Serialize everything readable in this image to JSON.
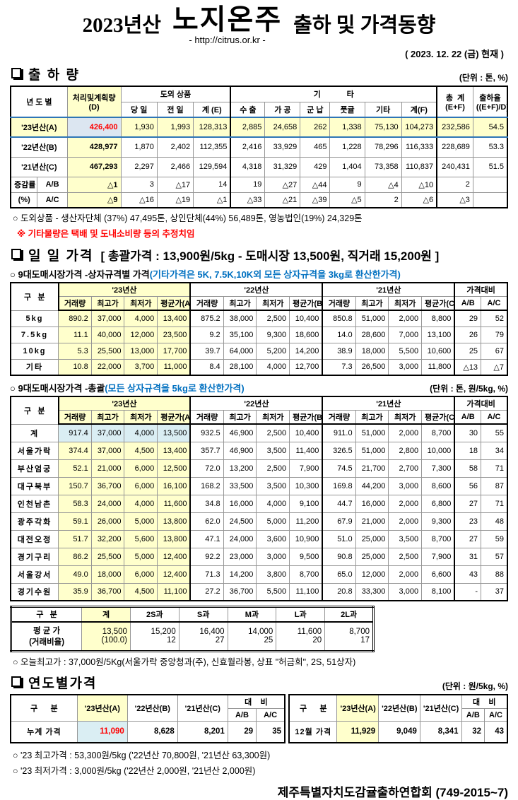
{
  "colors": {
    "accent_yellow": "#FFFFCC",
    "accent_blue": "#DAEEF3",
    "accent_blue2": "#DCE6F1",
    "red_text": "#FF0000",
    "blue_text": "#0070C0",
    "line_blue": "#2E75B6"
  },
  "title": {
    "year": "2023년산",
    "product": "노지온주",
    "rest": "출하 및 가격동향",
    "url": "- http://citrus.or.kr -",
    "date": "( 2023.  12.  22 (금) 현재 )"
  },
  "shipment": {
    "heading": "출 하 량",
    "unit": "(단위 : 톤, %)",
    "header": {
      "col_year": "년 도 별",
      "colD_top": "처리및계획량",
      "colD_bot": "(D)",
      "group_dooe": "도외 상품",
      "group_gita": "기            타",
      "sub": [
        "당 일",
        "전 일",
        "계 (E)",
        "수 출",
        "가 공",
        "군 납",
        "풋귤",
        "기타",
        "계(F)"
      ],
      "total_top": "총  계",
      "total_bot": "(E+F)",
      "rate_top": "출하율",
      "rate_bot": "((E+F)/D)"
    },
    "rows": [
      {
        "label": "'23년산(A)",
        "span": 2,
        "cls": "cur",
        "cells": [
          "426,400",
          "1,930",
          "1,993",
          "128,313",
          "2,885",
          "24,658",
          "262",
          "1,338",
          "75,130",
          "104,273",
          "232,586",
          "54.5"
        ]
      },
      {
        "label": "'22년산(B)",
        "span": 2,
        "cells": [
          "428,977",
          "1,870",
          "2,402",
          "112,355",
          "2,416",
          "33,929",
          "465",
          "1,228",
          "78,296",
          "116,333",
          "228,689",
          "53.3"
        ]
      },
      {
        "label": "'21년산(C)",
        "span": 2,
        "cells": [
          "467,293",
          "2,297",
          "2,466",
          "129,594",
          "4,318",
          "31,329",
          "429",
          "1,404",
          "73,358",
          "110,837",
          "240,431",
          "51.5"
        ]
      },
      {
        "label": "증감률",
        "label2": "A/B",
        "cls": "small",
        "cells": [
          "△1",
          "3",
          "△17",
          "14",
          "19",
          "△27",
          "△44",
          "9",
          "△4",
          "△10",
          "2",
          ""
        ]
      },
      {
        "label": "(%)",
        "label2": "A/C",
        "cls": "small",
        "cells": [
          "△9",
          "△16",
          "△19",
          "△1",
          "△33",
          "△21",
          "△39",
          "△5",
          "2",
          "△6",
          "△3",
          ""
        ]
      }
    ],
    "note1": "○ 도외상품 - 생산자단체 (37%) 47,495톤, 상인단체(44%) 56,489톤, 영농법인(19%) 24,329톤",
    "note2": "※ 기타물량은 택배 및 도내소비량 등의 추정치임"
  },
  "daily": {
    "heading": "일 일 가격",
    "bracket": "[ 총괄가격 : 13,900원/5kg - 도매시장 13,500원,  직거래 15,200원 ]",
    "price_header": {
      "gubun": "구   분",
      "y23": "'23년산",
      "y22": "'22년산",
      "y21": "'21년산",
      "cmp": "가격대비",
      "sub": [
        "거래량",
        "최고가",
        "최저가",
        "평균가(A)",
        "거래량",
        "최고가",
        "최저가",
        "평균가(B)",
        "거래량",
        "최고가",
        "최저가",
        "평균가(C)",
        "A/B",
        "A/C"
      ]
    },
    "box": {
      "title_black": "○ 9대도매시장가격 -상자규격별 가격",
      "title_blue": "(기타가격은 5K, 7.5K,10K외 모든 상자규격을 3kg로 환산한가격)",
      "rows": [
        {
          "label": "5kg",
          "cls": "hl-y",
          "cells": [
            "890.2",
            "37,000",
            "4,000",
            "13,400",
            "875.2",
            "38,000",
            "2,500",
            "10,400",
            "850.8",
            "51,000",
            "2,000",
            "8,800",
            "29",
            "52"
          ]
        },
        {
          "label": "7.5kg",
          "cls": "hl-y",
          "cells": [
            "11.1",
            "40,000",
            "12,000",
            "23,500",
            "9.2",
            "35,100",
            "9,300",
            "18,600",
            "14.0",
            "28,600",
            "7,000",
            "13,100",
            "26",
            "79"
          ]
        },
        {
          "label": "10kg",
          "cls": "hl-y",
          "cells": [
            "5.3",
            "25,500",
            "13,000",
            "17,700",
            "39.7",
            "64,000",
            "5,200",
            "14,200",
            "38.9",
            "18,000",
            "5,500",
            "10,600",
            "25",
            "67"
          ]
        },
        {
          "label": "기타",
          "cls": "hl-y",
          "cells": [
            "10.8",
            "22,000",
            "3,700",
            "11,000",
            "8.4",
            "28,100",
            "4,000",
            "12,700",
            "7.3",
            "26,500",
            "3,000",
            "11,800",
            "△13",
            "△7"
          ]
        }
      ]
    },
    "overall": {
      "title_black": "○ 9대도매시장가격 -총괄",
      "title_blue": "(모든 상자규격을 5kg로 환산한가격)",
      "unit": "(단위 : 톤, 원/5kg, %)",
      "rows": [
        {
          "label": "계",
          "cls": "hl-b",
          "cells": [
            "917.4",
            "37,000",
            "4,000",
            "13,500",
            "932.5",
            "46,900",
            "2,500",
            "10,400",
            "911.0",
            "51,000",
            "2,000",
            "8,700",
            "30",
            "55"
          ]
        },
        {
          "label": "서울가락",
          "cls": "hl-y",
          "cells": [
            "374.4",
            "37,000",
            "4,500",
            "13,400",
            "357.7",
            "46,900",
            "3,500",
            "11,400",
            "326.5",
            "51,000",
            "2,800",
            "10,000",
            "18",
            "34"
          ]
        },
        {
          "label": "부산엄궁",
          "cls": "hl-y",
          "cells": [
            "52.1",
            "21,000",
            "6,000",
            "12,500",
            "72.0",
            "13,200",
            "2,500",
            "7,900",
            "74.5",
            "21,700",
            "2,700",
            "7,300",
            "58",
            "71"
          ]
        },
        {
          "label": "대구북부",
          "cls": "hl-y",
          "cells": [
            "150.7",
            "36,700",
            "6,000",
            "16,100",
            "168.2",
            "33,500",
            "3,500",
            "10,300",
            "169.8",
            "44,200",
            "3,000",
            "8,600",
            "56",
            "87"
          ]
        },
        {
          "label": "인천남촌",
          "cls": "hl-y",
          "cells": [
            "58.3",
            "24,000",
            "4,000",
            "11,600",
            "34.8",
            "16,000",
            "4,000",
            "9,100",
            "44.7",
            "16,000",
            "2,000",
            "6,800",
            "27",
            "71"
          ]
        },
        {
          "label": "광주각화",
          "cls": "hl-y",
          "cells": [
            "59.1",
            "26,000",
            "5,000",
            "13,800",
            "62.0",
            "24,500",
            "5,000",
            "11,200",
            "67.9",
            "21,000",
            "2,000",
            "9,300",
            "23",
            "48"
          ]
        },
        {
          "label": "대전오정",
          "cls": "hl-y",
          "cells": [
            "51.7",
            "32,200",
            "5,600",
            "13,800",
            "47.1",
            "24,000",
            "3,600",
            "10,900",
            "51.0",
            "25,000",
            "3,500",
            "8,700",
            "27",
            "59"
          ]
        },
        {
          "label": "경기구리",
          "cls": "hl-y",
          "cells": [
            "86.2",
            "25,500",
            "5,000",
            "12,400",
            "92.2",
            "23,000",
            "3,000",
            "9,500",
            "90.8",
            "25,000",
            "2,500",
            "7,900",
            "31",
            "57"
          ]
        },
        {
          "label": "서울강서",
          "cls": "hl-y",
          "cells": [
            "49.0",
            "18,000",
            "6,000",
            "12,400",
            "71.3",
            "14,200",
            "3,800",
            "8,700",
            "65.0",
            "12,000",
            "2,000",
            "6,600",
            "43",
            "88"
          ]
        },
        {
          "label": "경기수원",
          "cls": "hl-y",
          "cells": [
            "35.9",
            "36,700",
            "4,500",
            "11,100",
            "27.2",
            "36,700",
            "5,500",
            "11,100",
            "20.8",
            "33,300",
            "3,000",
            "8,100",
            "-",
            "37"
          ]
        }
      ]
    },
    "sizes": {
      "headers": [
        "구   분",
        "계",
        "2S과",
        "S과",
        "M과",
        "L과",
        "2L과"
      ],
      "label_top": "평 균 가",
      "label_bottom": "(거래비율)",
      "cols": [
        {
          "price": "13,500",
          "ratio": "(100.0)"
        },
        {
          "price": "15,200",
          "ratio": "12"
        },
        {
          "price": "16,400",
          "ratio": "27"
        },
        {
          "price": "14,000",
          "ratio": "25"
        },
        {
          "price": "11,600",
          "ratio": "20"
        },
        {
          "price": "8,700",
          "ratio": "17"
        }
      ]
    },
    "today_note": "○ 오늘최고가  : 37,000원/5Kg(서울가락 중앙청과(주), 신효월라봉, 상표 \"허금희\", 2S, 51상자)"
  },
  "yearly": {
    "heading": "연도별가격",
    "unit": "(단위 : 원/5kg, %)",
    "year_header": {
      "gubun": "구      분",
      "y23": "'23년산(A)",
      "y22": "'22년산(B)",
      "y21": "'21년산(C)",
      "daebi": "대    비",
      "ab": "A/B",
      "ac": "A/C"
    },
    "left": {
      "label": "누계 가격",
      "values": [
        "11,090",
        "8,628",
        "8,201",
        "29",
        "35"
      ]
    },
    "right": {
      "label": "12월 가격",
      "values": [
        "11,929",
        "9,049",
        "8,341",
        "32",
        "43"
      ]
    },
    "notes": [
      "○ '23 최고가격 : 53,300원/5kg ('22년산 70,800원, '21년산 63,300원)",
      "○ '23 최저가격 :   3,000원/5kg ('22년산  2,000원, '21년산  2,000원)"
    ]
  },
  "footer": "제주특별자치도감귤출하연합회 (749-2015~7)"
}
